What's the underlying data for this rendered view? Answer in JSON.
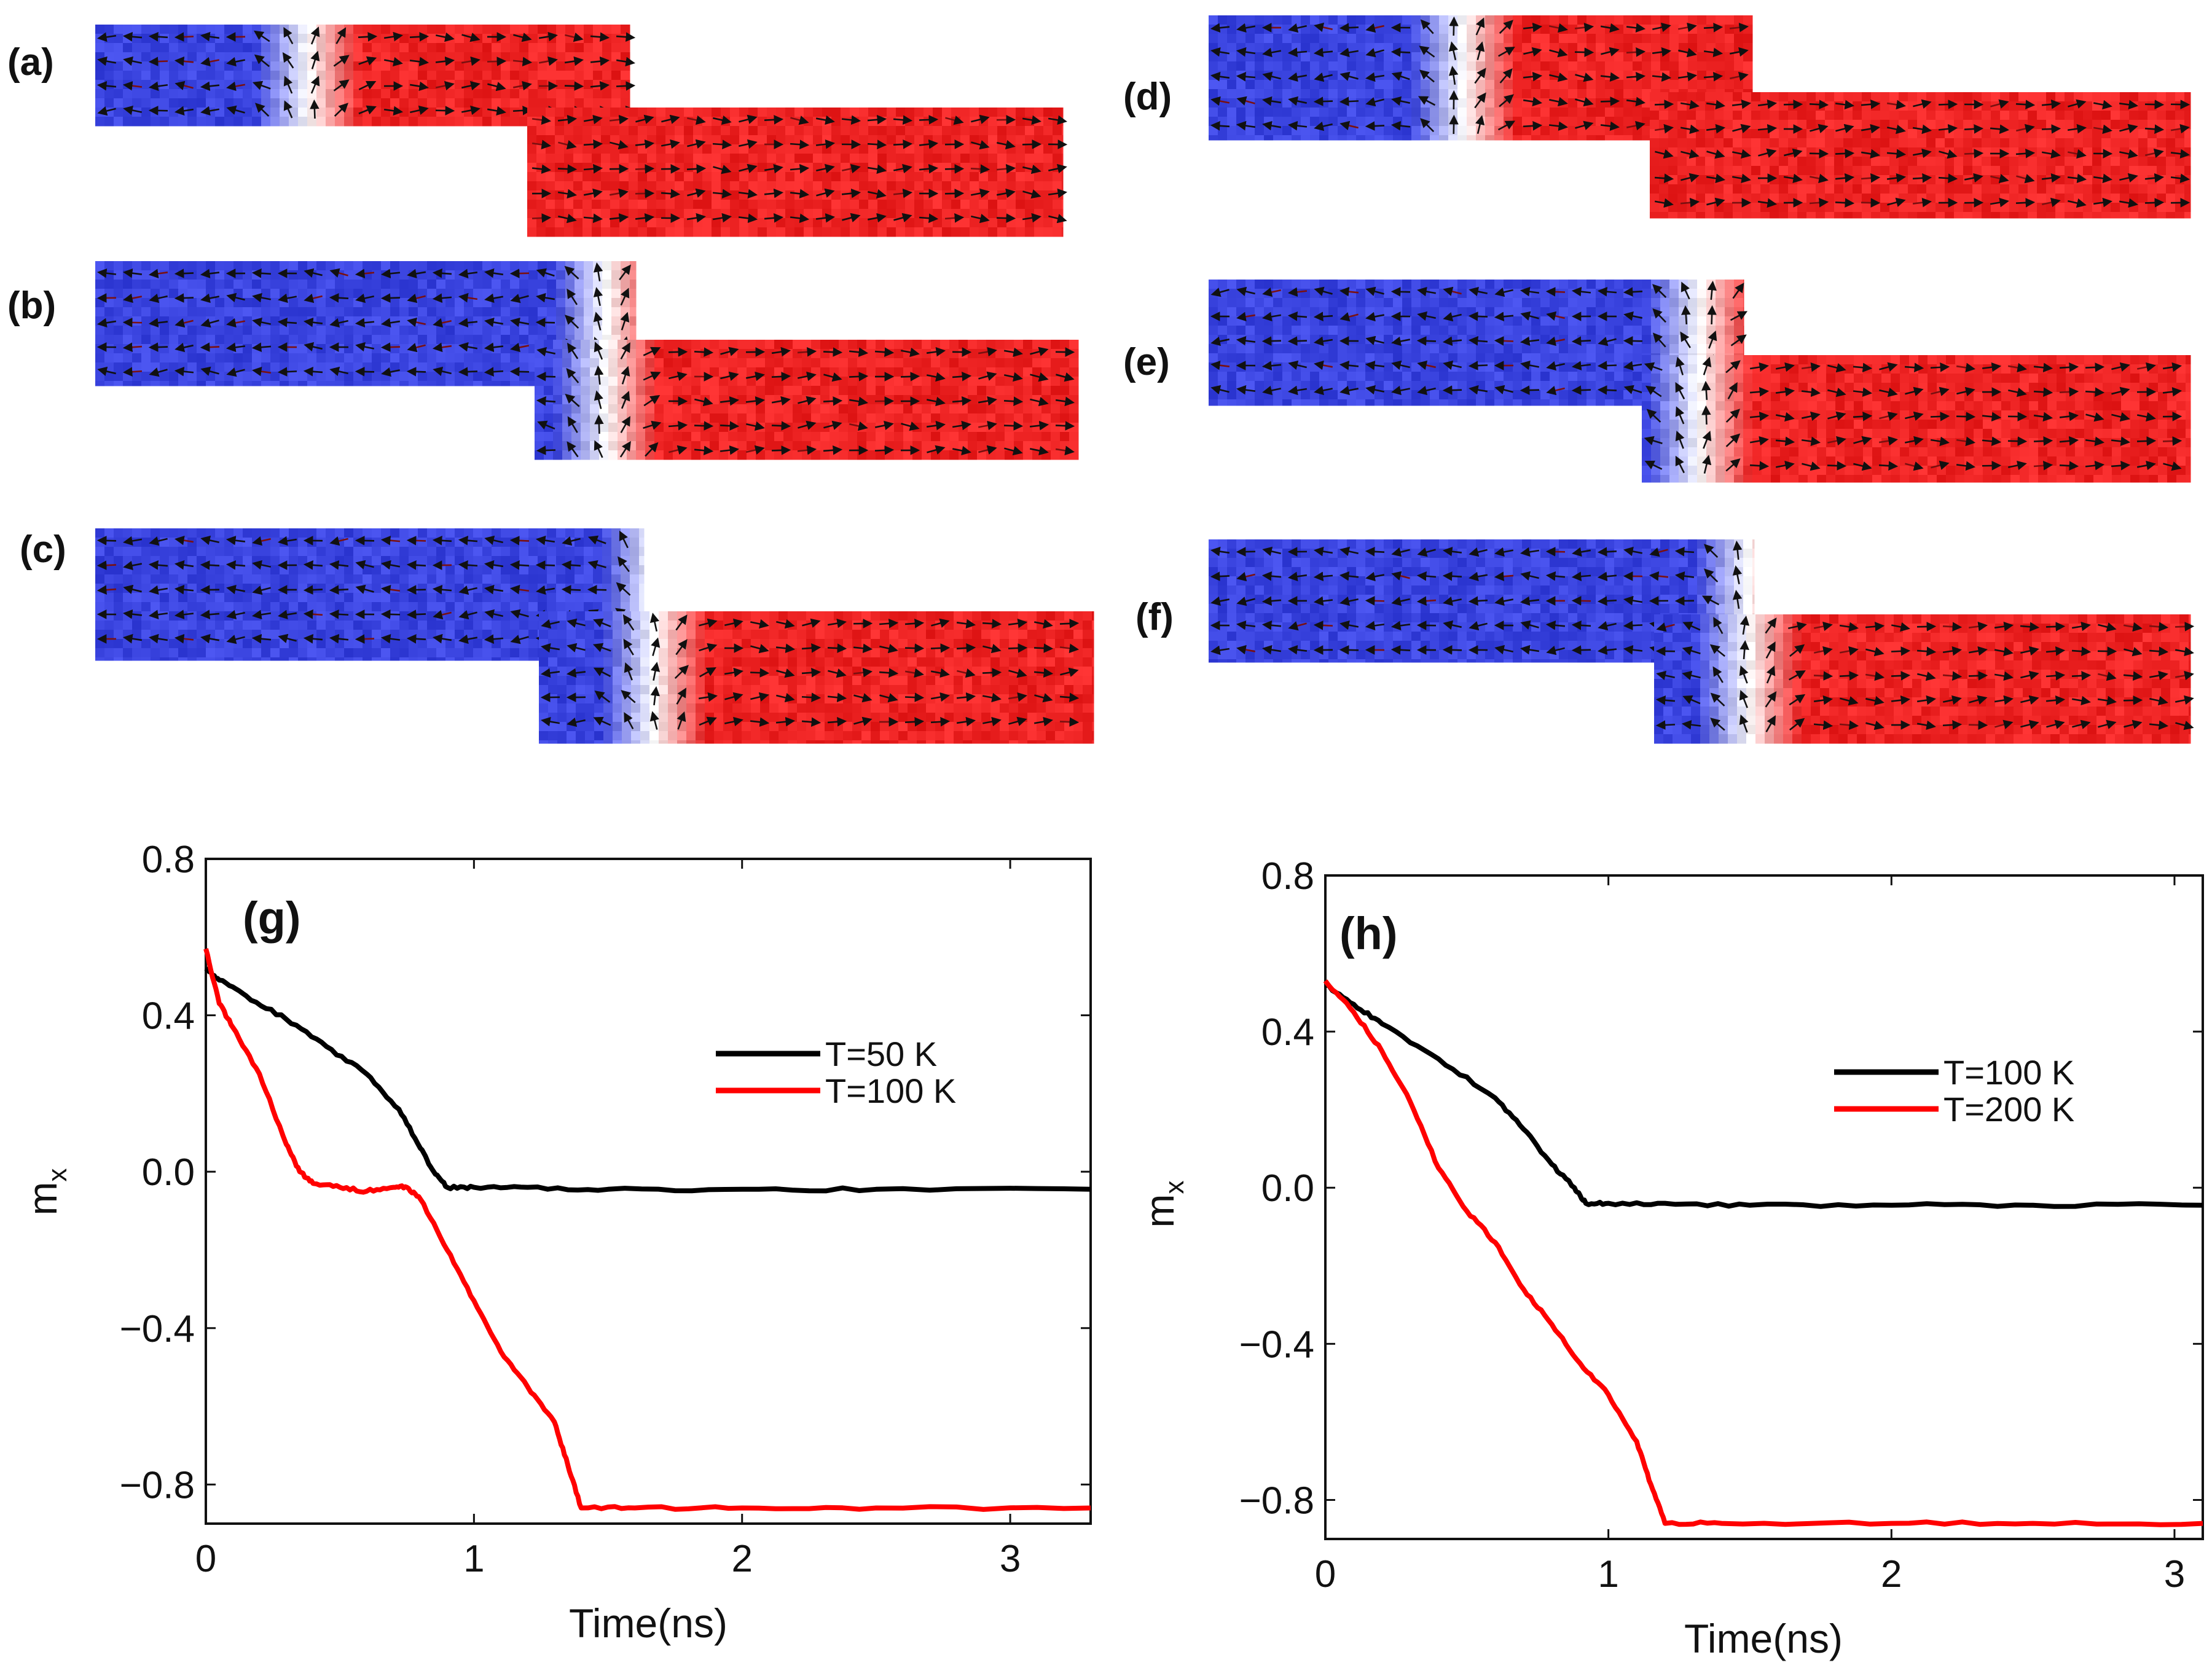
{
  "map_panels": [
    {
      "label": "(a)",
      "wall": 0.22
    },
    {
      "label": "(b)",
      "wall": 0.52
    },
    {
      "label": "(c)",
      "wall": 0.56
    },
    {
      "label": "(d)",
      "wall": 0.26
    },
    {
      "label": "(e)",
      "wall": 0.5
    },
    {
      "label": "(f)",
      "wall": 0.55
    }
  ],
  "colors": {
    "blue": "#3b45e0",
    "red": "#ee2424",
    "arrow": "#111111",
    "black_line": "#000000",
    "red_line": "#ff0000"
  },
  "chart_data": [
    {
      "type": "line",
      "panel_label": "(g)",
      "xlabel": "Time(ns)",
      "ylabel": "m",
      "ylabel_sub": "x",
      "xlim": [
        0,
        3.3
      ],
      "ylim": [
        -0.9,
        0.8
      ],
      "xticks": [
        "0",
        "1",
        "2",
        "3"
      ],
      "xtick_values": [
        0,
        1,
        2,
        3
      ],
      "yticks": [
        "0.8",
        "0.4",
        "0.0",
        "−0.4",
        "−0.8"
      ],
      "ytick_values": [
        0.8,
        0.4,
        0.0,
        -0.4,
        -0.8
      ],
      "legend": [
        "T=50 K",
        "T=100 K"
      ],
      "series": [
        {
          "name": "T=50 K",
          "color": "#000000",
          "x": [
            0,
            0.05,
            0.15,
            0.3,
            0.45,
            0.6,
            0.72,
            0.8,
            0.85,
            0.9,
            1.0,
            1.2,
            1.5,
            2.0,
            2.5,
            3.3
          ],
          "y": [
            0.52,
            0.49,
            0.45,
            0.39,
            0.32,
            0.25,
            0.16,
            0.06,
            0.0,
            -0.04,
            -0.04,
            -0.04,
            -0.045,
            -0.045,
            -0.045,
            -0.045
          ]
        },
        {
          "name": "T=100 K",
          "color": "#ff0000",
          "x": [
            0,
            0.05,
            0.1,
            0.2,
            0.3,
            0.35,
            0.4,
            0.5,
            0.6,
            0.7,
            0.75,
            0.8,
            0.9,
            1.0,
            1.1,
            1.2,
            1.3,
            1.35,
            1.4,
            1.6,
            2.0,
            2.5,
            3.3
          ],
          "y": [
            0.57,
            0.43,
            0.37,
            0.25,
            0.07,
            0.0,
            -0.03,
            -0.04,
            -0.05,
            -0.04,
            -0.04,
            -0.07,
            -0.2,
            -0.33,
            -0.46,
            -0.55,
            -0.64,
            -0.75,
            -0.86,
            -0.86,
            -0.86,
            -0.86,
            -0.86
          ]
        }
      ]
    },
    {
      "type": "line",
      "panel_label": "(h)",
      "xlabel": "Time(ns)",
      "ylabel": "m",
      "ylabel_sub": "x",
      "xlim": [
        0,
        3.1
      ],
      "ylim": [
        -0.9,
        0.8
      ],
      "xticks": [
        "0",
        "1",
        "2",
        "3"
      ],
      "xtick_values": [
        0,
        1,
        2,
        3
      ],
      "yticks": [
        "0.8",
        "0.4",
        "0.0",
        "−0.4",
        "−0.8"
      ],
      "ytick_values": [
        0.8,
        0.4,
        0.0,
        -0.4,
        -0.8
      ],
      "legend": [
        "T=100 K",
        "T=200 K"
      ],
      "series": [
        {
          "name": "T=100 K",
          "color": "#000000",
          "x": [
            0,
            0.1,
            0.2,
            0.4,
            0.6,
            0.7,
            0.8,
            0.88,
            0.92,
            1.0,
            1.2,
            1.5,
            2.0,
            2.5,
            3.1
          ],
          "y": [
            0.52,
            0.47,
            0.42,
            0.33,
            0.23,
            0.15,
            0.06,
            0.0,
            -0.04,
            -0.04,
            -0.04,
            -0.045,
            -0.045,
            -0.045,
            -0.045
          ]
        },
        {
          "name": "T=200 K",
          "color": "#ff0000",
          "x": [
            0,
            0.1,
            0.2,
            0.3,
            0.4,
            0.5,
            0.6,
            0.7,
            0.8,
            0.9,
            1.0,
            1.1,
            1.15,
            1.2,
            1.4,
            2.0,
            2.5,
            3.1
          ],
          "y": [
            0.53,
            0.45,
            0.35,
            0.22,
            0.05,
            -0.06,
            -0.14,
            -0.26,
            -0.35,
            -0.45,
            -0.53,
            -0.65,
            -0.76,
            -0.86,
            -0.86,
            -0.86,
            -0.86,
            -0.86
          ]
        }
      ]
    }
  ]
}
